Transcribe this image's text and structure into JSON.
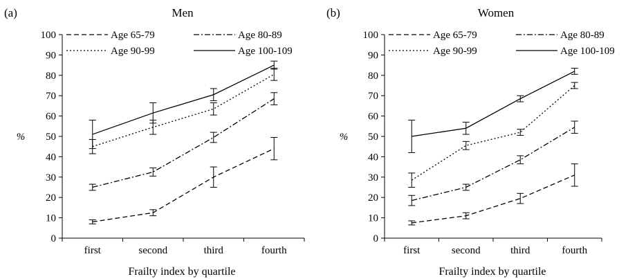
{
  "chart_data": [
    {
      "type": "line",
      "panel_label": "(a)",
      "title": "Men",
      "xlabel": "Frailty index by quartile",
      "ylabel": "%",
      "categories": [
        "first",
        "second",
        "third",
        "fourth"
      ],
      "ylim": [
        0,
        100
      ],
      "yticks": [
        0,
        10,
        20,
        30,
        40,
        50,
        60,
        70,
        80,
        90,
        100
      ],
      "grid": false,
      "legend_position": "top, inside plot, two columns",
      "series": [
        {
          "name": "Age 65-79",
          "style": "dashed",
          "values": [
            8,
            12.5,
            30,
            44
          ],
          "err": [
            1,
            1.5,
            5,
            5.5
          ]
        },
        {
          "name": "Age 80-89",
          "style": "dashdot",
          "values": [
            25,
            32.5,
            49.5,
            68.5
          ],
          "err": [
            1.5,
            2,
            2.5,
            3
          ]
        },
        {
          "name": "Age 90-99",
          "style": "dotted",
          "values": [
            45,
            54.5,
            63.5,
            80.5
          ],
          "err": [
            3.5,
            3.5,
            3,
            3
          ]
        },
        {
          "name": "Age 100-109",
          "style": "solid",
          "values": [
            51,
            61.5,
            70.5,
            85
          ],
          "err": [
            7,
            5,
            3,
            2
          ]
        }
      ]
    },
    {
      "type": "line",
      "panel_label": "(b)",
      "title": "Women",
      "xlabel": "Frailty index by quartile",
      "ylabel": "%",
      "categories": [
        "first",
        "second",
        "third",
        "fourth"
      ],
      "ylim": [
        0,
        100
      ],
      "yticks": [
        0,
        10,
        20,
        30,
        40,
        50,
        60,
        70,
        80,
        90,
        100
      ],
      "grid": false,
      "legend_position": "top, inside plot, two columns",
      "series": [
        {
          "name": "Age 65-79",
          "style": "dashed",
          "values": [
            7.5,
            11,
            19.5,
            31
          ],
          "err": [
            1,
            1.5,
            2.5,
            5.5
          ]
        },
        {
          "name": "Age 80-89",
          "style": "dashdot",
          "values": [
            18.5,
            25,
            38.5,
            54.5
          ],
          "err": [
            2.5,
            1.5,
            2,
            3
          ]
        },
        {
          "name": "Age 90-99",
          "style": "dotted",
          "values": [
            28.5,
            45.5,
            52,
            75
          ],
          "err": [
            3.5,
            2,
            1.5,
            1.5
          ]
        },
        {
          "name": "Age 100-109",
          "style": "solid",
          "values": [
            50,
            54,
            68.5,
            82
          ],
          "err": [
            8,
            3,
            1.5,
            1.5
          ]
        }
      ]
    }
  ]
}
